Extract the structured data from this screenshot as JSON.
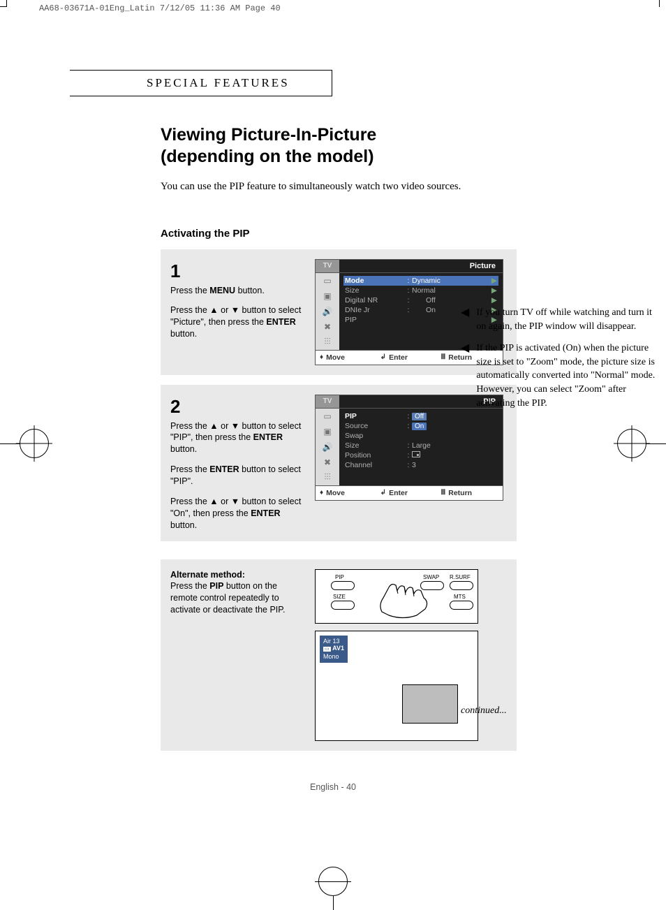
{
  "header_slug": "AA68-03671A-01Eng_Latin  7/12/05  11:36 AM  Page 40",
  "section_title": "SPECIAL FEATURES",
  "title_line1": "Viewing Picture-In-Picture",
  "title_line2": "(depending on the model)",
  "intro": "You can use the PIP feature to simultaneously watch two video sources.",
  "subheading": "Activating the PIP",
  "step1": {
    "num": "1",
    "p1a": "Press the ",
    "p1b": "MENU",
    "p1c": " button.",
    "p2": "Press the ▲ or ▼ button to select \"Picture\", then press the ",
    "p2b": "ENTER",
    "p2c": " button."
  },
  "osd1": {
    "title": "Picture",
    "rows": [
      {
        "label": "Mode",
        "val": "Dynamic",
        "sel": true,
        "arrow": true
      },
      {
        "label": "Size",
        "val": "Normal",
        "arrow": true
      },
      {
        "label": "Digital NR",
        "val": "Off",
        "arrow": true,
        "indent": true
      },
      {
        "label": "DNIe Jr",
        "val": "On",
        "arrow": true,
        "indent": true
      },
      {
        "label": "PIP",
        "val": "",
        "arrow": true
      }
    ],
    "foot": {
      "move": "Move",
      "enter": "Enter",
      "return": "Return"
    }
  },
  "step2": {
    "num": "2",
    "p1": "Press the ▲ or ▼ button to select \"PIP\", then press the ",
    "p1b": "ENTER",
    "p1c": " button.",
    "p2": "Press the ",
    "p2b": "ENTER",
    "p2c": " button to select \"PIP\".",
    "p3": "Press the ▲ or ▼ button to select \"On\", then press the ",
    "p3b": "ENTER",
    "p3c": " button."
  },
  "osd2": {
    "title": "PIP",
    "rows": [
      {
        "label": "PIP",
        "val": "Off",
        "sel_label": true,
        "pill": true
      },
      {
        "label": "Source",
        "val": "On",
        "pill": true,
        "sel_val": true
      },
      {
        "label": "Swap",
        "val": ""
      },
      {
        "label": "Size",
        "val": "Large"
      },
      {
        "label": "Position",
        "val": "[pos]"
      },
      {
        "label": "Channel",
        "val": "3"
      }
    ],
    "foot": {
      "move": "Move",
      "enter": "Enter",
      "return": "Return"
    }
  },
  "notes": {
    "n1": "If you turn TV off while watching and turn it on again, the PIP window will disappear.",
    "n2": "If the PIP is activated (On) when the picture size is set to \"Zoom\" mode, the picture size is automatically converted into \"Normal\" mode. However, you can select \"Zoom\" after activating the PIP."
  },
  "alt": {
    "h": "Alternate method:",
    "t1": "Press the ",
    "t1b": "PIP",
    "t1c": " button on the remote control repeatedly to activate or deactivate the PIP."
  },
  "remote": {
    "labels": {
      "pip": "PIP",
      "swap": "SWAP",
      "rsurf": "R.SURF",
      "size": "SIZE",
      "mts": "MTS"
    }
  },
  "tvshot": {
    "line1": "Air  13",
    "line2": "AV1",
    "line3": "Mono"
  },
  "continued": "continued...",
  "pagenum": "English - 40",
  "colors": {
    "panel_bg": "#e9e9e9",
    "osd_dark": "#1f1f1f",
    "osd_gray": "#969696",
    "sel_blue": "#4a73b8",
    "pill_blue": "#5b7fb5",
    "corner_blue": "#3a5a8a"
  }
}
